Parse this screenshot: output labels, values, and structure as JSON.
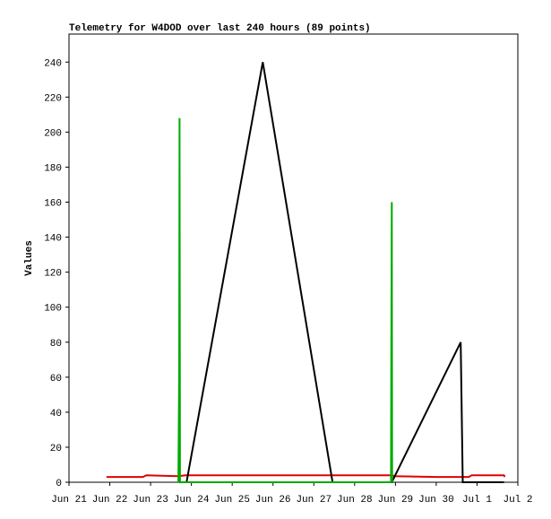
{
  "chart_data": {
    "type": "line",
    "title": "Telemetry for W4DOD over last 240 hours (89 points)",
    "y_label": "Values",
    "xlim": [
      0,
      11
    ],
    "xticks": [
      {
        "value": 0,
        "label": "Jun 21"
      },
      {
        "value": 1,
        "label": "Jun 22"
      },
      {
        "value": 2,
        "label": "Jun 23"
      },
      {
        "value": 3,
        "label": "Jun 24"
      },
      {
        "value": 4,
        "label": "Jun 25"
      },
      {
        "value": 5,
        "label": "Jun 26"
      },
      {
        "value": 6,
        "label": "Jun 27"
      },
      {
        "value": 7,
        "label": "Jun 28"
      },
      {
        "value": 8,
        "label": "Jun 29"
      },
      {
        "value": 9,
        "label": "Jun 30"
      },
      {
        "value": 10,
        "label": "Jul 1"
      },
      {
        "value": 11,
        "label": "Jul 2"
      }
    ],
    "ylim": [
      0,
      256
    ],
    "yticks": [
      0,
      20,
      40,
      60,
      80,
      100,
      120,
      140,
      160,
      180,
      200,
      220,
      240
    ],
    "series": [
      {
        "color": "#9900cc",
        "x": [
          2.75,
          7.9
        ],
        "values": [
          0,
          0
        ]
      },
      {
        "color": "#e00000",
        "x": [
          0.92,
          1.81,
          1.9,
          2.68,
          2.85,
          7.91,
          8.0,
          9.0,
          9.8,
          9.87,
          10.66,
          10.68
        ],
        "values": [
          3,
          3,
          4,
          3.5,
          4,
          4,
          3.5,
          3,
          3,
          4,
          4,
          3
        ]
      },
      {
        "color": "#000000",
        "x": [
          2.7,
          2.88,
          4.75,
          6.46,
          7.91,
          9.6,
          9.65,
          10.66
        ],
        "values": [
          0,
          0,
          240,
          0,
          0,
          80,
          0,
          0
        ]
      },
      {
        "color": "#00aa00",
        "x": [
          2.68,
          2.7,
          2.71,
          2.72,
          7.89,
          7.9,
          7.91,
          7.92
        ],
        "values": [
          0,
          64,
          208,
          0,
          0,
          80,
          160,
          0
        ]
      }
    ]
  }
}
